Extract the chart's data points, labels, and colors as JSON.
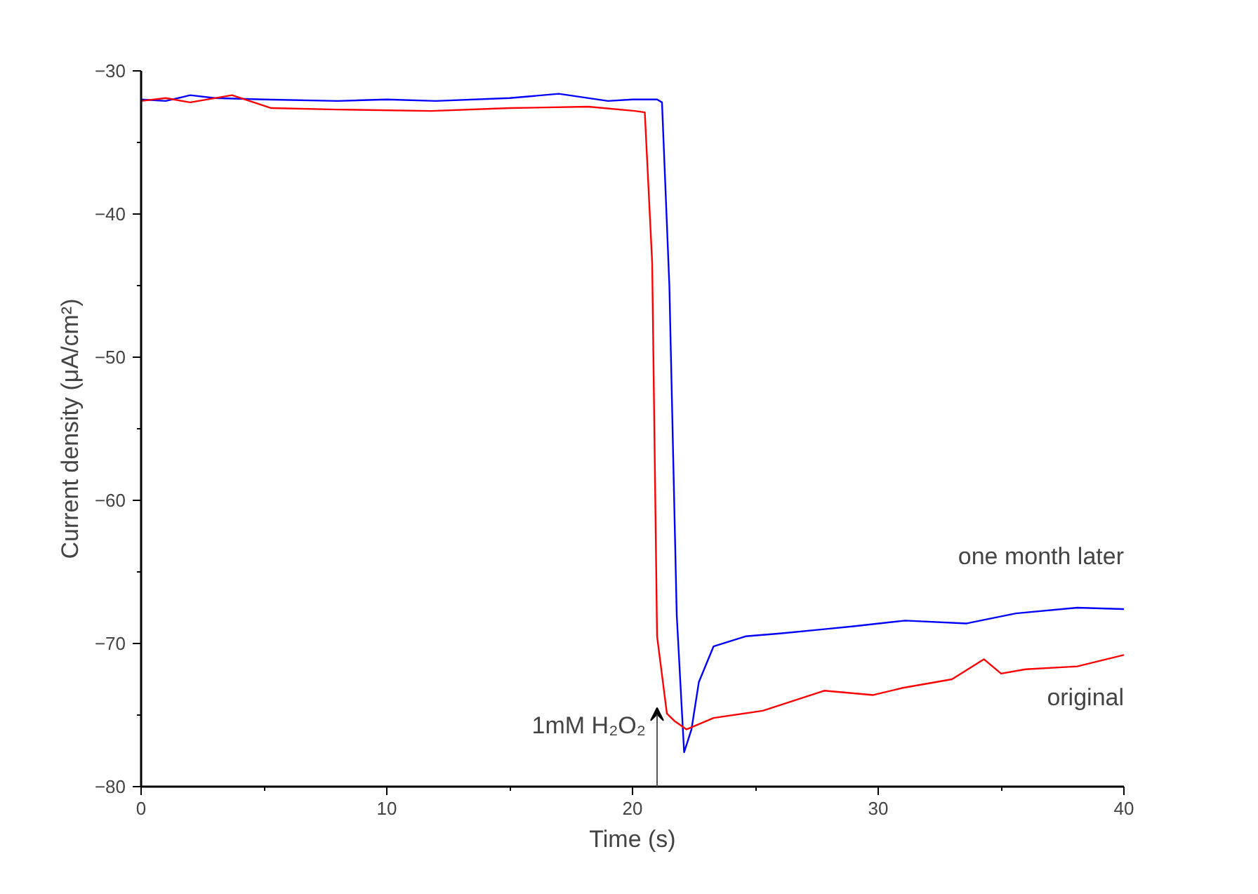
{
  "chart_data": {
    "type": "line",
    "xlabel": "Time (s)",
    "ylabel": "Current density (μA/cm²)",
    "xlim": [
      0,
      40
    ],
    "ylim": [
      -80,
      -30
    ],
    "xticks": [
      0,
      10,
      20,
      30,
      40
    ],
    "yticks": [
      -80,
      -70,
      -60,
      -50,
      -40,
      -30
    ],
    "grid": false,
    "legend": false,
    "marker": "none",
    "line_style": "solid",
    "series": [
      {
        "name": "one month later",
        "color": "#0000ff",
        "x": [
          0,
          1,
          2,
          3,
          5,
          8,
          10,
          12,
          15,
          17,
          19,
          20,
          21,
          21.2,
          21.5,
          21.8,
          22.1,
          22.4,
          22.7,
          23.3,
          24.6,
          26,
          27.8,
          29,
          31.1,
          33.6,
          35.6,
          38.1,
          40
        ],
        "values": [
          -32,
          -32.1,
          -31.7,
          -31.9,
          -32,
          -32.1,
          -32,
          -32.1,
          -31.9,
          -31.6,
          -32.1,
          -32,
          -32,
          -32.2,
          -45,
          -68,
          -77.6,
          -76,
          -72.7,
          -70.2,
          -69.5,
          -69.3,
          -69,
          -68.8,
          -68.4,
          -68.6,
          -67.9,
          -67.5,
          -67.6
        ]
      },
      {
        "name": "original",
        "color": "#ff0000",
        "x": [
          0,
          1,
          2,
          3.7,
          5.3,
          8,
          11.8,
          15,
          18.2,
          20.1,
          20.5,
          20.8,
          21,
          21.4,
          21.7,
          22.2,
          23.3,
          25.3,
          27.8,
          29.8,
          31,
          33,
          34.3,
          35,
          36,
          38.1,
          40
        ],
        "values": [
          -32.1,
          -31.9,
          -32.2,
          -31.7,
          -32.6,
          -32.7,
          -32.8,
          -32.6,
          -32.5,
          -32.8,
          -32.9,
          -43.4,
          -69.5,
          -74.9,
          -75.4,
          -76,
          -75.2,
          -74.7,
          -73.3,
          -73.6,
          -73.1,
          -72.5,
          -71.1,
          -72.1,
          -71.8,
          -71.6,
          -70.8
        ]
      }
    ],
    "annotations": [
      "1mM H₂O₂"
    ]
  }
}
